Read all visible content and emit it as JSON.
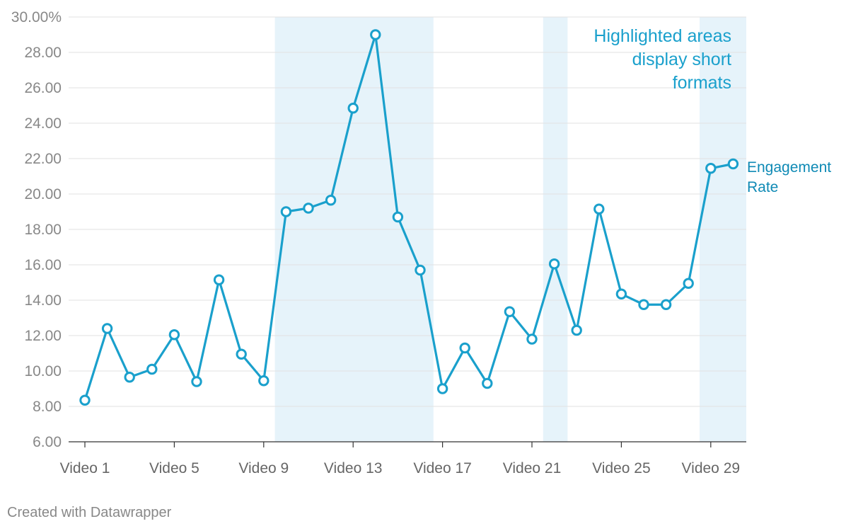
{
  "chart_data": {
    "type": "line",
    "title": "",
    "xlabel": "",
    "ylabel": "",
    "x": [
      "Video 1",
      "Video 2",
      "Video 3",
      "Video 4",
      "Video 5",
      "Video 6",
      "Video 7",
      "Video 8",
      "Video 9",
      "Video 10",
      "Video 11",
      "Video 12",
      "Video 13",
      "Video 14",
      "Video 15",
      "Video 16",
      "Video 17",
      "Video 18",
      "Video 19",
      "Video 20",
      "Video 21",
      "Video 22",
      "Video 23",
      "Video 24",
      "Video 25",
      "Video 26",
      "Video 27",
      "Video 28",
      "Video 29",
      "Video 30"
    ],
    "x_tick_labels": [
      "Video 1",
      "Video 5",
      "Video 9",
      "Video 13",
      "Video 17",
      "Video 21",
      "Video 25",
      "Video 29"
    ],
    "ylim": [
      6,
      30
    ],
    "y_ticks": [
      6,
      8,
      10,
      12,
      14,
      16,
      18,
      20,
      22,
      24,
      26,
      28,
      30
    ],
    "y_tick_labels": [
      "6.00",
      "8.00",
      "10.00",
      "12.00",
      "14.00",
      "16.00",
      "18.00",
      "20.00",
      "22.00",
      "24.00",
      "26.00",
      "28.00",
      "30.00%"
    ],
    "grid": true,
    "series": [
      {
        "name": "Engagement Rate",
        "color": "#1aa0cc",
        "values": [
          8.35,
          12.4,
          9.65,
          10.1,
          12.05,
          9.4,
          15.15,
          10.95,
          9.45,
          19.0,
          19.2,
          19.65,
          24.85,
          29.0,
          18.7,
          15.7,
          9.0,
          11.3,
          9.3,
          13.35,
          11.8,
          16.05,
          12.3,
          19.15,
          14.35,
          13.75,
          13.75,
          14.95,
          21.45,
          21.7
        ]
      }
    ],
    "series_label": [
      "Engagement",
      "Rate"
    ],
    "highlight_ranges": [
      {
        "from": "Video 10",
        "to": "Video 16"
      },
      {
        "from": "Video 22",
        "to": "Video 22"
      },
      {
        "from": "Video 29",
        "to": "Video 30"
      }
    ],
    "highlight_color": "#e6f3fa",
    "annotation": {
      "lines": [
        "Highlighted areas",
        "display short",
        "formats"
      ],
      "color": "#1aa0cc"
    },
    "label_color": "#0f8ab5"
  },
  "footer": {
    "credit": "Created with Datawrapper"
  }
}
